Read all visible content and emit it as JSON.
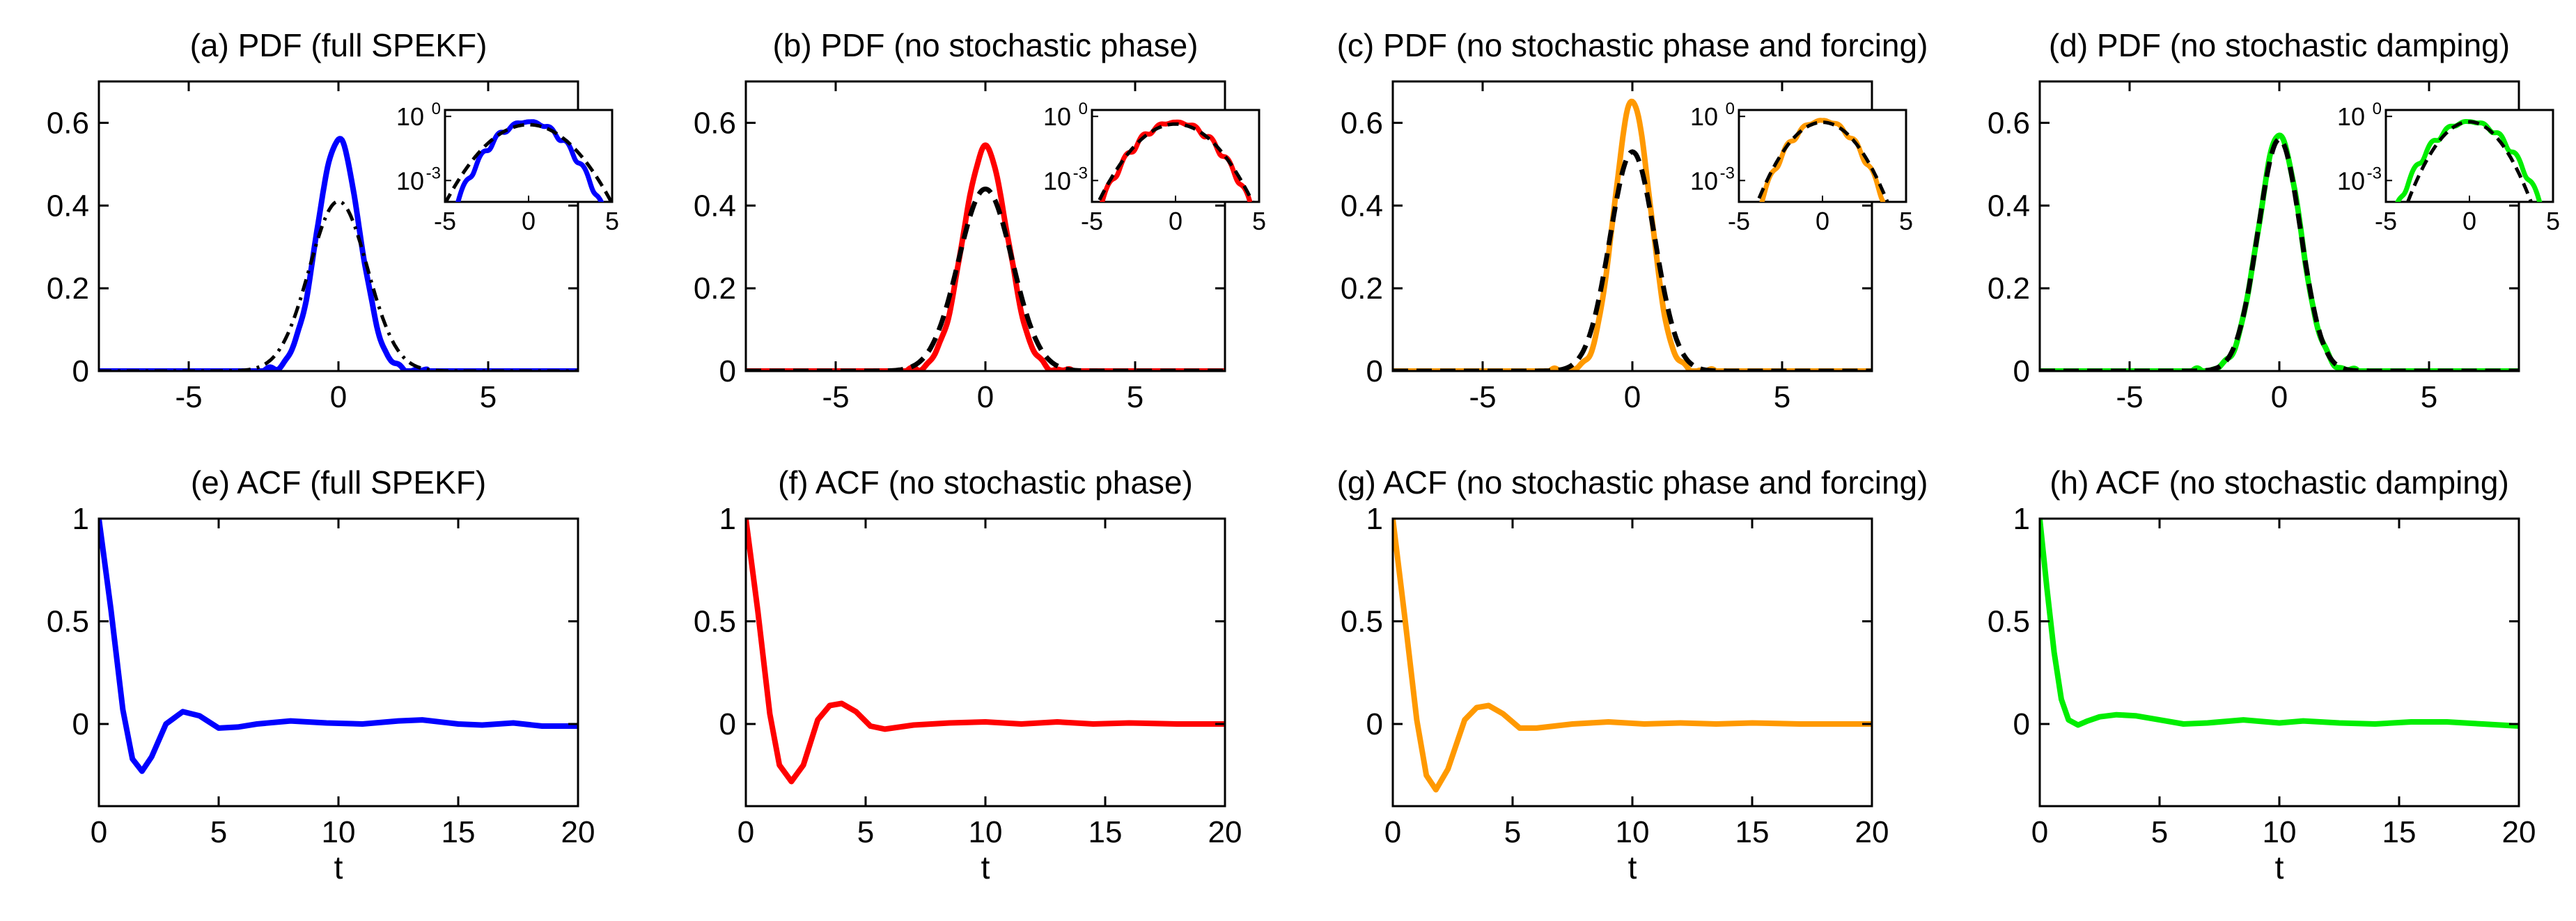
{
  "chart_data": [
    {
      "type": "line",
      "row": "pdf",
      "panel": "a",
      "title": "(a)  PDF (full SPEKF)",
      "color": "#0000ff",
      "xlim": [
        -8,
        8
      ],
      "ylim": [
        0,
        0.7
      ],
      "xticks": [
        -5,
        0,
        5
      ],
      "yticks": [
        0,
        0.2,
        0.4,
        0.6
      ],
      "xtick_labels": [
        "-5",
        "0",
        "5"
      ],
      "ytick_labels": [
        "0",
        "0.2",
        "0.4",
        "0.6"
      ],
      "xlabel": "",
      "ylabel": "",
      "series": [
        {
          "name": "model",
          "style": "solid",
          "peak": 0.56,
          "sigma": 0.71
        },
        {
          "name": "gaussian",
          "style": "dashdot",
          "peak": 0.41,
          "sigma": 0.97
        }
      ],
      "inset": {
        "type": "line",
        "yscale": "log",
        "xlim": [
          -5,
          5
        ],
        "xtick_labels": [
          "-5",
          "0",
          "5"
        ],
        "ytick_labels": [
          "10",
          "10"
        ],
        "ytick_exponents": [
          "0",
          "-3"
        ]
      }
    },
    {
      "type": "line",
      "row": "pdf",
      "panel": "b",
      "title": "(b)  PDF (no stochastic phase)",
      "color": "#ff0000",
      "xlim": [
        -8,
        8
      ],
      "ylim": [
        0,
        0.7
      ],
      "xticks": [
        -5,
        0,
        5
      ],
      "yticks": [
        0,
        0.2,
        0.4,
        0.6
      ],
      "xtick_labels": [
        "-5",
        "0",
        "5"
      ],
      "ytick_labels": [
        "0",
        "0.2",
        "0.4",
        "0.6"
      ],
      "xlabel": "",
      "ylabel": "",
      "series": [
        {
          "name": "model",
          "style": "solid",
          "peak": 0.54,
          "sigma": 0.74
        },
        {
          "name": "gaussian",
          "style": "dashed",
          "peak": 0.44,
          "sigma": 0.9
        }
      ],
      "inset": {
        "type": "line",
        "yscale": "log",
        "xlim": [
          -5,
          5
        ],
        "xtick_labels": [
          "-5",
          "0",
          "5"
        ],
        "ytick_labels": [
          "10",
          "10"
        ],
        "ytick_exponents": [
          "0",
          "-3"
        ]
      }
    },
    {
      "type": "line",
      "row": "pdf",
      "panel": "c",
      "title": "(c)  PDF (no stochastic phase and forcing)",
      "color": "#ff9900",
      "xlim": [
        -8,
        8
      ],
      "ylim": [
        0,
        0.7
      ],
      "xticks": [
        -5,
        0,
        5
      ],
      "yticks": [
        0,
        0.2,
        0.4,
        0.6
      ],
      "xtick_labels": [
        "-5",
        "0",
        "5"
      ],
      "ytick_labels": [
        "0",
        "0.2",
        "0.4",
        "0.6"
      ],
      "xlabel": "",
      "ylabel": "",
      "series": [
        {
          "name": "model",
          "style": "solid",
          "peak": 0.65,
          "sigma": 0.61
        },
        {
          "name": "gaussian",
          "style": "dashed",
          "peak": 0.53,
          "sigma": 0.75
        }
      ],
      "inset": {
        "type": "line",
        "yscale": "log",
        "xlim": [
          -5,
          5
        ],
        "xtick_labels": [
          "-5",
          "0",
          "5"
        ],
        "ytick_labels": [
          "10",
          "10"
        ],
        "ytick_exponents": [
          "0",
          "-3"
        ]
      }
    },
    {
      "type": "line",
      "row": "pdf",
      "panel": "d",
      "title": "(d)  PDF (no stochastic damping)",
      "color": "#00ee00",
      "xlim": [
        -8,
        8
      ],
      "ylim": [
        0,
        0.7
      ],
      "xticks": [
        -5,
        0,
        5
      ],
      "yticks": [
        0,
        0.2,
        0.4,
        0.6
      ],
      "xtick_labels": [
        "-5",
        "0",
        "5"
      ],
      "ytick_labels": [
        "0",
        "0.2",
        "0.4",
        "0.6"
      ],
      "xlabel": "",
      "ylabel": "",
      "series": [
        {
          "name": "model",
          "style": "solid",
          "peak": 0.57,
          "sigma": 0.7
        },
        {
          "name": "gaussian",
          "style": "dashed",
          "peak": 0.56,
          "sigma": 0.71
        }
      ],
      "inset": {
        "type": "line",
        "yscale": "log",
        "xlim": [
          -5,
          5
        ],
        "xtick_labels": [
          "-5",
          "0",
          "5"
        ],
        "ytick_labels": [
          "10",
          "10"
        ],
        "ytick_exponents": [
          "0",
          "-3"
        ]
      }
    },
    {
      "type": "line",
      "row": "acf",
      "panel": "e",
      "title": "(e)  ACF (full SPEKF)",
      "color": "#0000ff",
      "xlim": [
        0,
        20
      ],
      "ylim": [
        -0.4,
        1
      ],
      "xticks": [
        0,
        5,
        10,
        15,
        20
      ],
      "yticks": [
        0,
        0.5,
        1
      ],
      "xtick_labels": [
        "0",
        "5",
        "10",
        "15",
        "20"
      ],
      "ytick_labels": [
        "0",
        "0.5",
        "1"
      ],
      "xlabel": "t",
      "ylabel": "",
      "series": [
        {
          "name": "acf",
          "x": [
            0,
            0.5,
            1.0,
            1.4,
            1.8,
            2.2,
            2.8,
            3.5,
            4.2,
            5.0,
            5.8,
            6.6,
            8.0,
            9.5,
            11,
            12.5,
            13.5,
            15,
            16,
            17.3,
            18.5,
            20
          ],
          "y": [
            1,
            0.56,
            0.07,
            -0.17,
            -0.23,
            -0.16,
            0.0,
            0.06,
            0.04,
            -0.02,
            -0.015,
            0.0,
            0.015,
            0.005,
            0.0,
            0.015,
            0.02,
            0.0,
            -0.005,
            0.005,
            -0.01,
            -0.01
          ]
        }
      ]
    },
    {
      "type": "line",
      "row": "acf",
      "panel": "f",
      "title": "(f)  ACF (no stochastic phase)",
      "color": "#ff0000",
      "xlim": [
        0,
        20
      ],
      "ylim": [
        -0.4,
        1
      ],
      "xticks": [
        0,
        5,
        10,
        15,
        20
      ],
      "yticks": [
        0,
        0.5,
        1
      ],
      "xtick_labels": [
        "0",
        "5",
        "10",
        "15",
        "20"
      ],
      "ytick_labels": [
        "0",
        "0.5",
        "1"
      ],
      "xlabel": "t",
      "ylabel": "",
      "series": [
        {
          "name": "acf",
          "x": [
            0,
            0.5,
            1.0,
            1.4,
            1.9,
            2.4,
            3.0,
            3.5,
            4.0,
            4.6,
            5.2,
            5.8,
            7.0,
            8.5,
            10,
            11.5,
            13,
            14.5,
            16,
            18,
            20
          ],
          "y": [
            1,
            0.55,
            0.05,
            -0.2,
            -0.28,
            -0.2,
            0.02,
            0.09,
            0.1,
            0.06,
            -0.01,
            -0.025,
            -0.005,
            0.005,
            0.01,
            0.0,
            0.01,
            0.0,
            0.005,
            0.0,
            0.0
          ]
        }
      ]
    },
    {
      "type": "line",
      "row": "acf",
      "panel": "g",
      "title": "(g)  ACF (no stochastic phase and forcing)",
      "color": "#ff9900",
      "xlim": [
        0,
        20
      ],
      "ylim": [
        -0.4,
        1
      ],
      "xticks": [
        0,
        5,
        10,
        15,
        20
      ],
      "yticks": [
        0,
        0.5,
        1
      ],
      "xtick_labels": [
        "0",
        "5",
        "10",
        "15",
        "20"
      ],
      "ytick_labels": [
        "0",
        "0.5",
        "1"
      ],
      "xlabel": "t",
      "ylabel": "",
      "series": [
        {
          "name": "acf",
          "x": [
            0,
            0.5,
            1.0,
            1.4,
            1.8,
            2.3,
            3.0,
            3.5,
            4.0,
            4.6,
            5.3,
            6.0,
            7.5,
            9,
            10.5,
            12,
            13.5,
            15,
            17,
            20
          ],
          "y": [
            1,
            0.52,
            0.02,
            -0.25,
            -0.32,
            -0.22,
            0.02,
            0.08,
            0.09,
            0.05,
            -0.02,
            -0.02,
            0.0,
            0.01,
            0.0,
            0.005,
            0.0,
            0.005,
            0.0,
            0.0
          ]
        }
      ]
    },
    {
      "type": "line",
      "row": "acf",
      "panel": "h",
      "title": "(h)  ACF (no stochastic damping)",
      "color": "#00ee00",
      "xlim": [
        0,
        20
      ],
      "ylim": [
        -0.4,
        1
      ],
      "xticks": [
        0,
        5,
        10,
        15,
        20
      ],
      "yticks": [
        0,
        0.5,
        1
      ],
      "xtick_labels": [
        "0",
        "5",
        "10",
        "15",
        "20"
      ],
      "ytick_labels": [
        "0",
        "0.5",
        "1"
      ],
      "xlabel": "t",
      "ylabel": "",
      "series": [
        {
          "name": "acf",
          "x": [
            0,
            0.3,
            0.6,
            0.9,
            1.2,
            1.6,
            2.0,
            2.5,
            3.2,
            4.0,
            5.0,
            6.0,
            7.0,
            8.5,
            10,
            11,
            12.5,
            14,
            15.5,
            17,
            18.5,
            20
          ],
          "y": [
            1,
            0.66,
            0.35,
            0.12,
            0.02,
            -0.005,
            0.015,
            0.035,
            0.045,
            0.04,
            0.02,
            0.0,
            0.005,
            0.02,
            0.005,
            0.015,
            0.005,
            0.0,
            0.01,
            0.01,
            0.0,
            -0.01
          ]
        }
      ]
    }
  ]
}
